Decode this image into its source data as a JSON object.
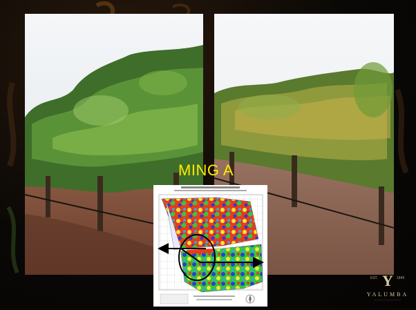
{
  "slide": {
    "caption": "MING A",
    "caption_color": "#ffeb00",
    "background_color": "#0a0806"
  },
  "photos": [
    {
      "name": "vineyard-photo-left",
      "subject": "grapevine-rows-green-canopy"
    },
    {
      "name": "vineyard-photo-right",
      "subject": "grapevine-rows-yellowing-canopy"
    }
  ],
  "map": {
    "subject": "vineyard-variability-zone-map",
    "zone_colors": [
      "#2b3bd8",
      "#2fa8e0",
      "#3cc43c",
      "#f2e83a",
      "#e83a1c"
    ],
    "annotations": [
      "circle-marker",
      "double-headed-arrow"
    ]
  },
  "logo": {
    "year_left": "EST.",
    "monogram": "Y",
    "year_right": "1849",
    "name": "YALUMBA"
  }
}
